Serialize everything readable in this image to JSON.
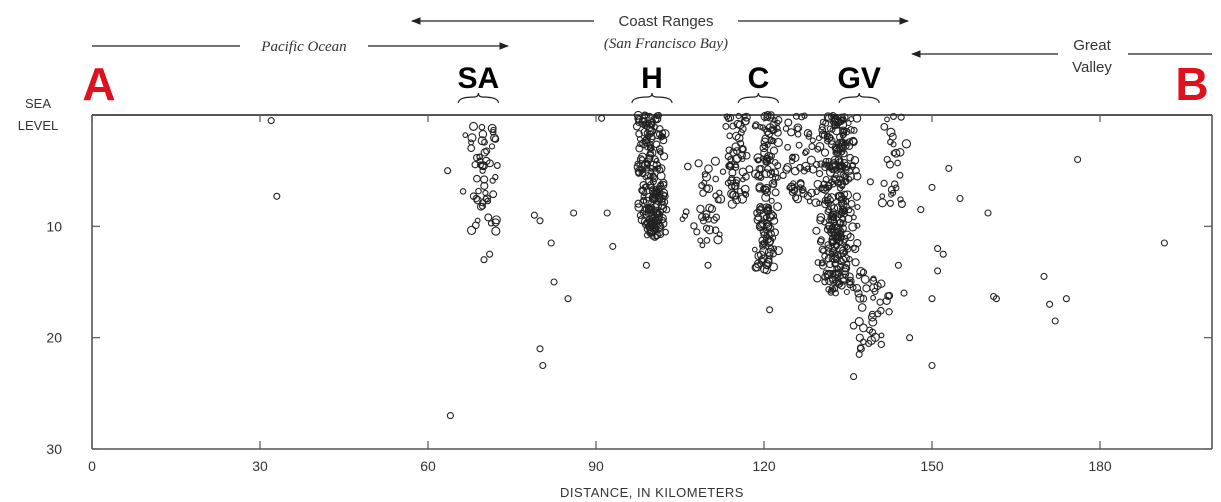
{
  "colors": {
    "accent": "#e0101e",
    "ink": "#222222",
    "axis": "#555555"
  },
  "chart_data": {
    "type": "scatter",
    "xlabel": "DISTANCE, IN KILOMETERS",
    "ylabel": "",
    "xlim": [
      0,
      200
    ],
    "ylim": [
      30,
      0
    ],
    "xticks": [
      0,
      30,
      60,
      90,
      120,
      150,
      180
    ],
    "yticks": [
      10,
      20,
      30
    ],
    "sea_level_label": [
      "SEA",
      "LEVEL"
    ],
    "endpoints": {
      "left": "A",
      "right": "B"
    },
    "regions": [
      {
        "label": "Pacific Ocean",
        "style": "italic"
      },
      {
        "label": "Coast Ranges",
        "sublabel": "(San Francisco Bay)"
      },
      {
        "label": "Great",
        "label2": "Valley"
      }
    ],
    "faults": [
      {
        "label": "SA",
        "x": 69
      },
      {
        "label": "H",
        "x": 100
      },
      {
        "label": "C",
        "x": 119
      },
      {
        "label": "GV",
        "x": 137
      }
    ],
    "marker": "open-circle",
    "clusters": [
      {
        "x": [
          66,
          73
        ],
        "y": [
          1,
          10.5
        ],
        "n": 55
      },
      {
        "x": [
          97,
          103
        ],
        "y": [
          0,
          11
        ],
        "n": 220
      },
      {
        "x": [
          112,
          118
        ],
        "y": [
          0,
          8
        ],
        "n": 60
      },
      {
        "x": [
          118,
          123
        ],
        "y": [
          0,
          14
        ],
        "n": 140
      },
      {
        "x": [
          123,
          130
        ],
        "y": [
          0,
          8
        ],
        "n": 50
      },
      {
        "x": [
          129,
          137
        ],
        "y": [
          0,
          16
        ],
        "n": 330
      },
      {
        "x": [
          135,
          143
        ],
        "y": [
          14,
          21
        ],
        "n": 40
      },
      {
        "x": [
          104,
          116
        ],
        "y": [
          4,
          12
        ],
        "n": 40
      },
      {
        "x": [
          140,
          146
        ],
        "y": [
          0,
          8
        ],
        "n": 25
      }
    ],
    "points": [
      {
        "x": 32,
        "y": 0.5
      },
      {
        "x": 33,
        "y": 7.3
      },
      {
        "x": 63.5,
        "y": 5
      },
      {
        "x": 64,
        "y": 27
      },
      {
        "x": 71,
        "y": 12.5
      },
      {
        "x": 70,
        "y": 13
      },
      {
        "x": 79,
        "y": 9
      },
      {
        "x": 80,
        "y": 9.5
      },
      {
        "x": 82,
        "y": 11.5
      },
      {
        "x": 82.5,
        "y": 15
      },
      {
        "x": 85,
        "y": 16.5
      },
      {
        "x": 86,
        "y": 8.8
      },
      {
        "x": 80,
        "y": 21
      },
      {
        "x": 80.5,
        "y": 22.5
      },
      {
        "x": 91,
        "y": 0.3
      },
      {
        "x": 92,
        "y": 8.8
      },
      {
        "x": 93,
        "y": 11.8
      },
      {
        "x": 99,
        "y": 13.5
      },
      {
        "x": 108,
        "y": 10.5
      },
      {
        "x": 110,
        "y": 13.5
      },
      {
        "x": 121,
        "y": 17.5
      },
      {
        "x": 136,
        "y": 23.5
      },
      {
        "x": 137,
        "y": 21.5
      },
      {
        "x": 144,
        "y": 13.5
      },
      {
        "x": 145,
        "y": 16
      },
      {
        "x": 146,
        "y": 20
      },
      {
        "x": 148,
        "y": 8.5
      },
      {
        "x": 150,
        "y": 6.5
      },
      {
        "x": 150,
        "y": 16.5
      },
      {
        "x": 150,
        "y": 22.5
      },
      {
        "x": 151,
        "y": 12
      },
      {
        "x": 151,
        "y": 14
      },
      {
        "x": 152,
        "y": 12.5
      },
      {
        "x": 153,
        "y": 4.8
      },
      {
        "x": 155,
        "y": 7.5
      },
      {
        "x": 160,
        "y": 8.8
      },
      {
        "x": 161,
        "y": 16.3
      },
      {
        "x": 161.5,
        "y": 16.5
      },
      {
        "x": 170,
        "y": 14.5
      },
      {
        "x": 171,
        "y": 17
      },
      {
        "x": 172,
        "y": 18.5
      },
      {
        "x": 174,
        "y": 16.5
      },
      {
        "x": 176,
        "y": 4
      },
      {
        "x": 191.5,
        "y": 11.5
      },
      {
        "x": 144.5,
        "y": 0.2
      },
      {
        "x": 142,
        "y": 4
      },
      {
        "x": 139,
        "y": 6
      }
    ]
  }
}
